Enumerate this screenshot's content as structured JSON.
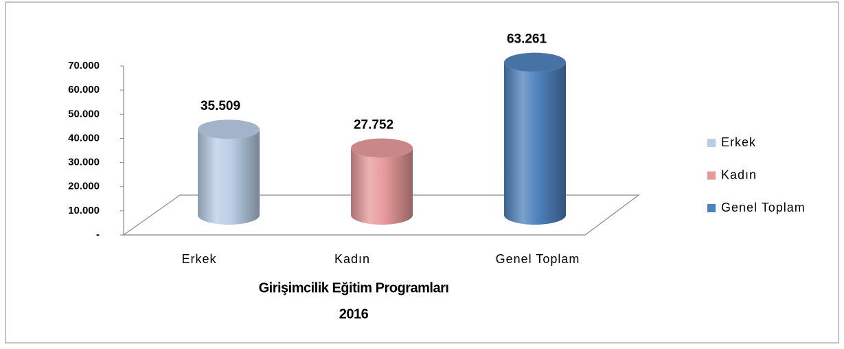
{
  "chart_data": {
    "type": "cylinder",
    "title": "Girişimcilik Eğitim Programları",
    "subtitle": "2016",
    "categories": [
      "Erkek",
      "Kadın",
      "Genel Toplam"
    ],
    "values": [
      35509,
      27752,
      63261
    ],
    "value_labels": [
      "35.509",
      "27.752",
      "63.261"
    ],
    "colors": [
      "#b9cde5",
      "#e6999a",
      "#4f81bd"
    ],
    "ylim": [
      0,
      70000
    ],
    "yticks": [
      {
        "value": 0,
        "label": "-"
      },
      {
        "value": 10000,
        "label": "10.000"
      },
      {
        "value": 20000,
        "label": "20.000"
      },
      {
        "value": 30000,
        "label": "30.000"
      },
      {
        "value": 40000,
        "label": "40.000"
      },
      {
        "value": 50000,
        "label": "50.000"
      },
      {
        "value": 60000,
        "label": "60.000"
      },
      {
        "value": 70000,
        "label": "70.000"
      }
    ],
    "grid": false,
    "legend": "right"
  }
}
